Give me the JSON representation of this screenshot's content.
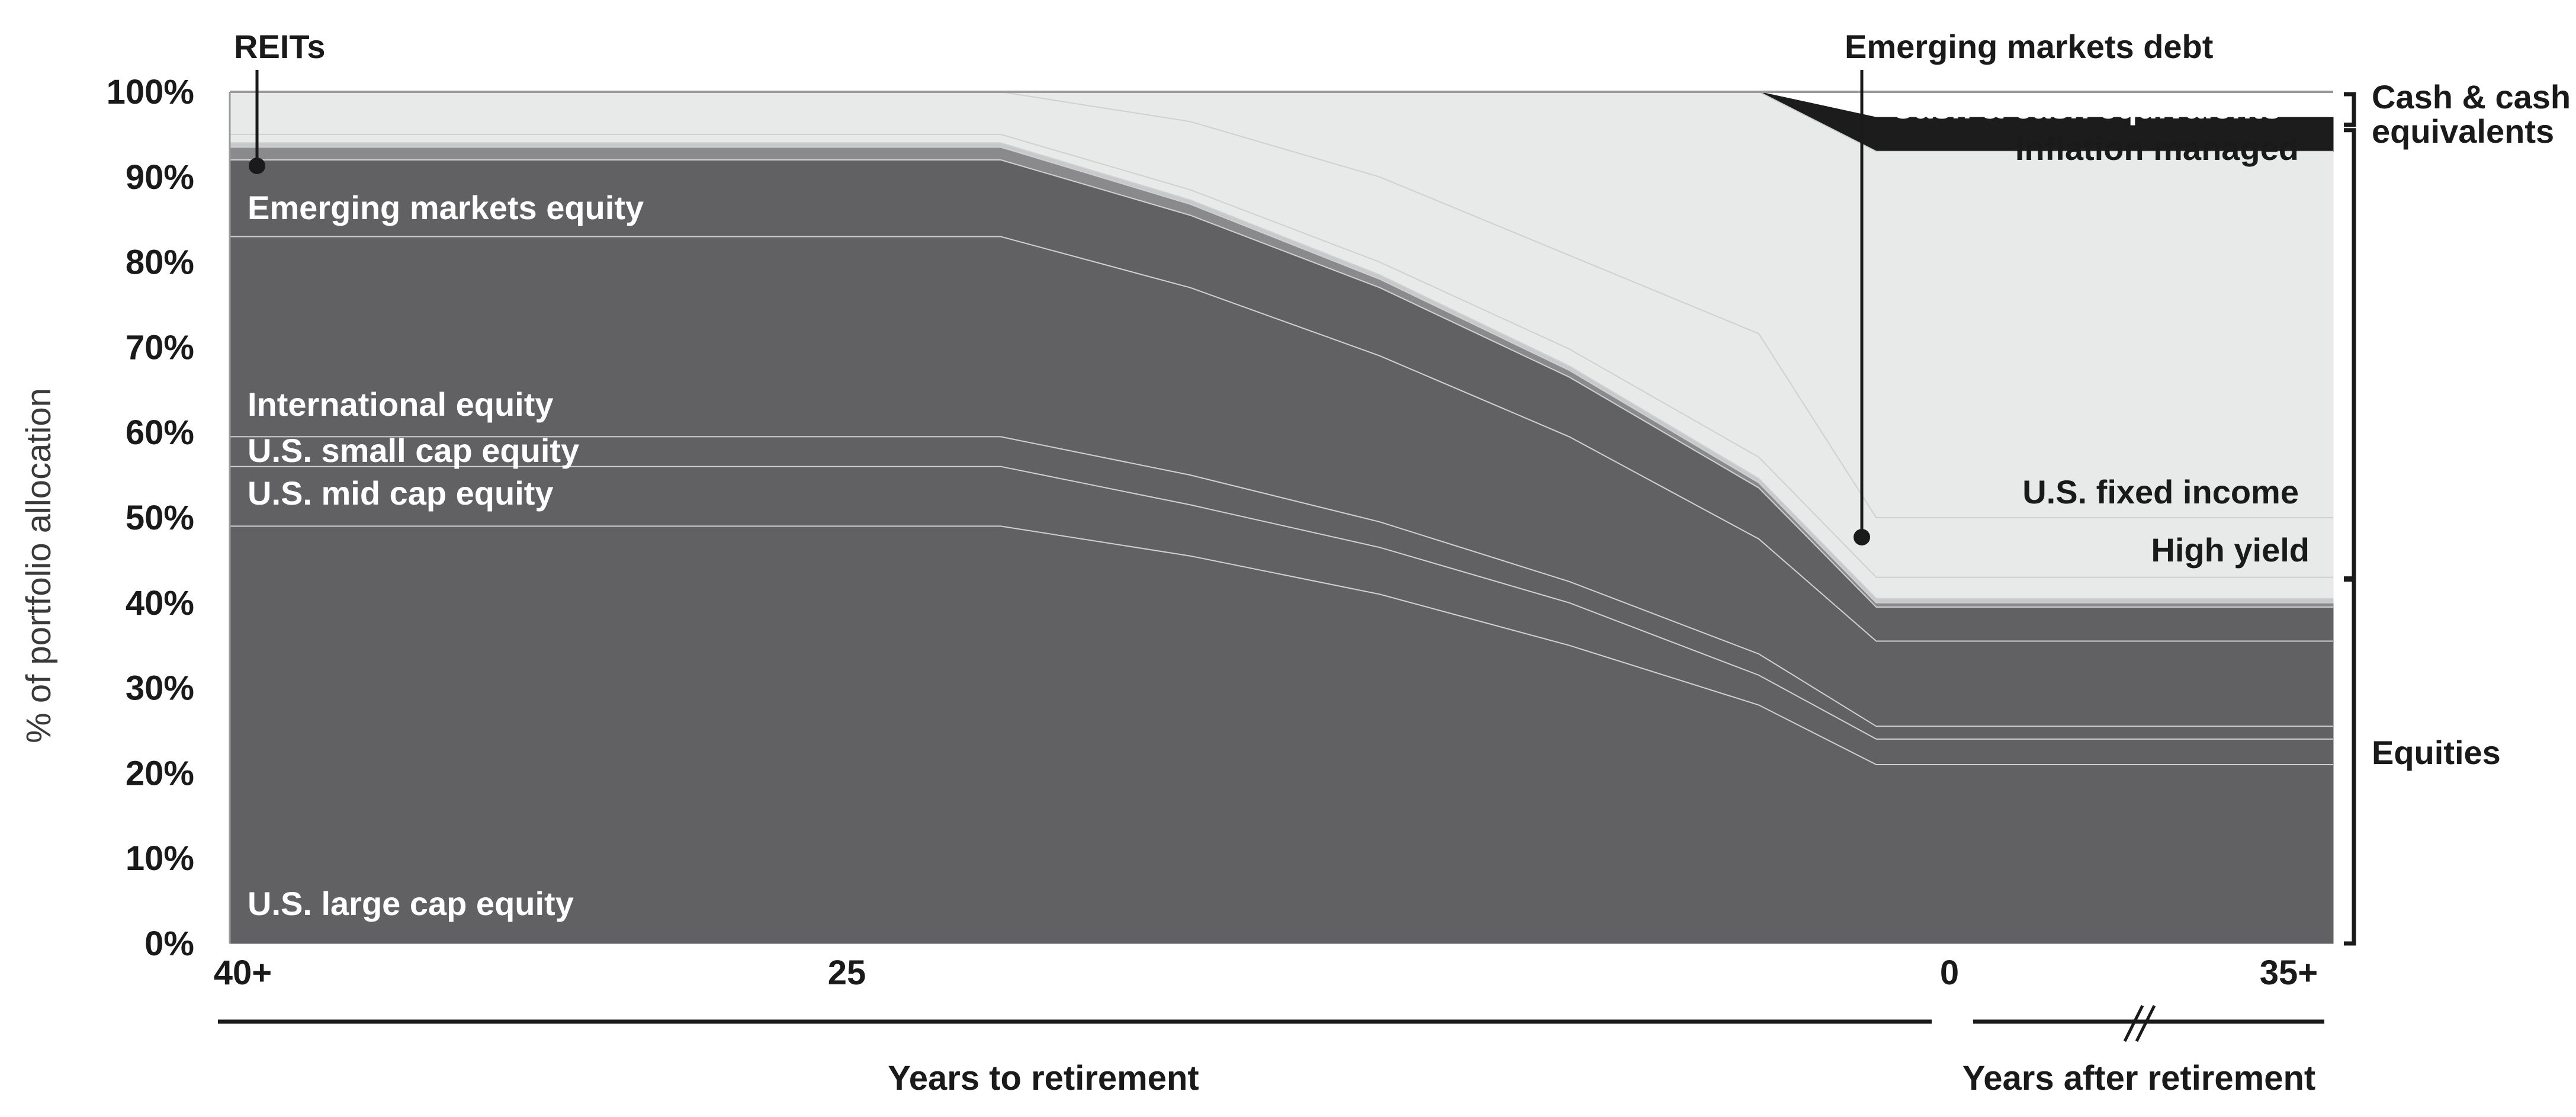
{
  "chart_data": {
    "type": "area",
    "title": "",
    "ylabel": "% of portfolio allocation",
    "ylim": [
      0,
      100
    ],
    "y_ticks": [
      "0%",
      "10%",
      "20%",
      "30%",
      "40%",
      "50%",
      "60%",
      "70%",
      "80%",
      "90%",
      "100%"
    ],
    "x_tick_labels": [
      "40+",
      "25",
      "0",
      "35+"
    ],
    "x_section_labels": [
      "Years to retirement",
      "Years after retirement"
    ],
    "x_points": [
      "40+",
      "30",
      "25",
      "20",
      "15",
      "10",
      "5",
      "0",
      "35+"
    ],
    "series": [
      {
        "name": "U.S. large cap equity",
        "values": [
          49,
          49,
          45.5,
          41,
          35,
          28,
          21,
          21,
          21
        ],
        "color": "#616163"
      },
      {
        "name": "U.S. mid cap equity",
        "values": [
          7,
          7,
          6,
          5.5,
          5,
          3.5,
          3,
          3,
          3
        ],
        "color": "#616163"
      },
      {
        "name": "U.S. small cap equity",
        "values": [
          3.5,
          3.5,
          3.5,
          3,
          2.5,
          2.5,
          1.5,
          1.5,
          1.5
        ],
        "color": "#616163"
      },
      {
        "name": "International equity",
        "values": [
          23.5,
          23.5,
          22,
          19.5,
          17,
          13.5,
          10,
          10,
          10
        ],
        "color": "#616163"
      },
      {
        "name": "Emerging markets equity",
        "values": [
          9,
          9,
          8.5,
          8,
          7,
          6,
          4,
          4,
          4
        ],
        "color": "#616163"
      },
      {
        "name": "REITs",
        "values": [
          1.5,
          1.5,
          1.3,
          1,
          0.8,
          0.6,
          0.5,
          0.5,
          0.5
        ],
        "color": "#8a8a8c"
      },
      {
        "name": "Emerging markets debt",
        "values": [
          0.5,
          0.5,
          0.5,
          0.5,
          0.5,
          0.5,
          0.5,
          0.5,
          0.5
        ],
        "color": "#c8c9ca"
      },
      {
        "name": "High yield",
        "values": [
          1,
          1,
          1.2,
          1.5,
          2,
          2.5,
          2.5,
          2.5,
          2.5
        ],
        "color": "#e8e9e9"
      },
      {
        "name": "U.S. fixed income",
        "values": [
          5,
          5,
          8,
          10,
          11,
          14.5,
          7,
          7,
          7
        ],
        "color": "#e8e9e9"
      },
      {
        "name": "Inflation managed",
        "values": [
          0,
          0,
          3.5,
          10,
          19.2,
          28.4,
          43,
          43,
          43
        ],
        "color": "#e8e9e9"
      },
      {
        "name": "Cash & cash equivalents",
        "values": [
          0,
          0,
          0,
          0,
          0,
          0,
          4,
          4,
          4
        ],
        "color": "#1c1c1c"
      }
    ],
    "group_labels": [
      "Cash & cash equivalents",
      "Equities"
    ],
    "callouts": [
      "REITs",
      "Emerging markets debt"
    ],
    "legend": "inline labels"
  }
}
